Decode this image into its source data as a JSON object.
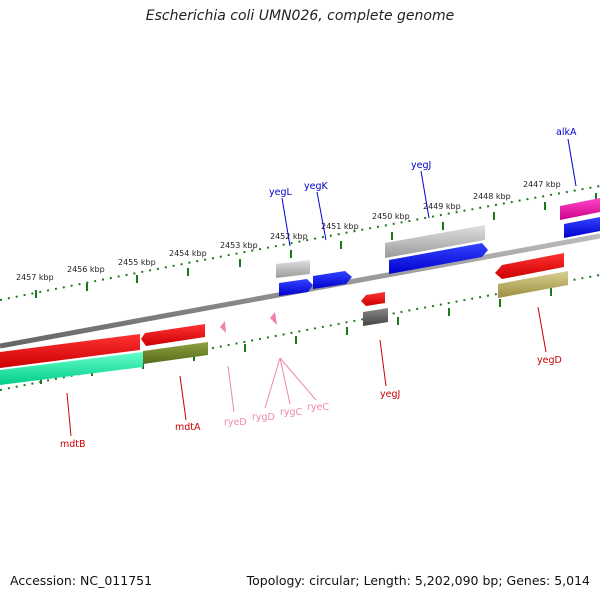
{
  "title": "Escherichia coli UMN026, complete genome",
  "footer": {
    "accession": "Accession: NC_011751",
    "topology": "Topology: circular; Length: 5,202,090 bp; Genes: 5,014"
  },
  "ticks": [
    "2457 kbp",
    "2456 kbp",
    "2455 kbp",
    "2454 kbp",
    "2453 kbp",
    "2452 kbp",
    "2451 kbp",
    "2450 kbp",
    "2449 kbp",
    "2448 kbp",
    "2447 kbp"
  ],
  "genes": {
    "yegL": "yegL",
    "yegK": "yegK",
    "yegJ_top": "yegJ",
    "alkA": "alkA",
    "mdtB": "mdtB",
    "mdtA": "mdtA",
    "ryeD": "ryeD",
    "rygD": "rygD",
    "rygC": "rygC",
    "ryeC": "ryeC",
    "yegJ_bottom": "yegJ",
    "yegD": "yegD"
  },
  "colors": {
    "forward_label": "#0000cc",
    "reverse_label": "#cc0000",
    "rna_label": "#ee88aa",
    "tick_green": "#1a7a1a",
    "backbone": "#888888"
  }
}
